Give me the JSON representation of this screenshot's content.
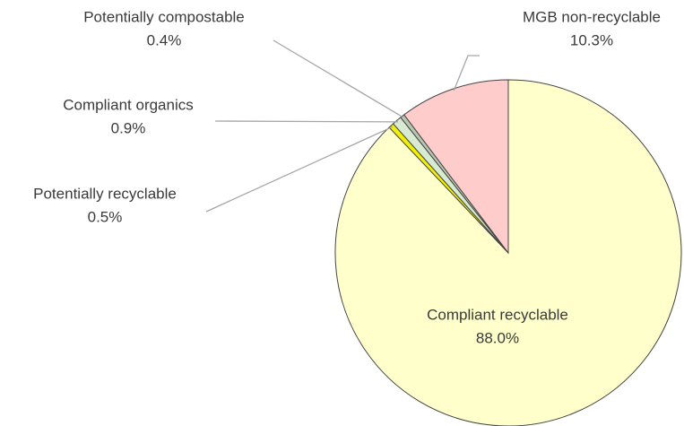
{
  "chart_data": {
    "type": "pie",
    "categories": [
      "Compliant recyclable",
      "Potentially recyclable",
      "Compliant organics",
      "Potentially compostable",
      "MGB non-recyclable"
    ],
    "values": [
      88.0,
      0.5,
      0.9,
      0.4,
      10.3
    ],
    "value_labels": [
      "88.0%",
      "0.5%",
      "0.9%",
      "0.4%",
      "10.3%"
    ],
    "colors": [
      "#ffffcc",
      "#f0f000",
      "#d8ead2",
      "#b8c8b0",
      "#ffcccc"
    ]
  }
}
